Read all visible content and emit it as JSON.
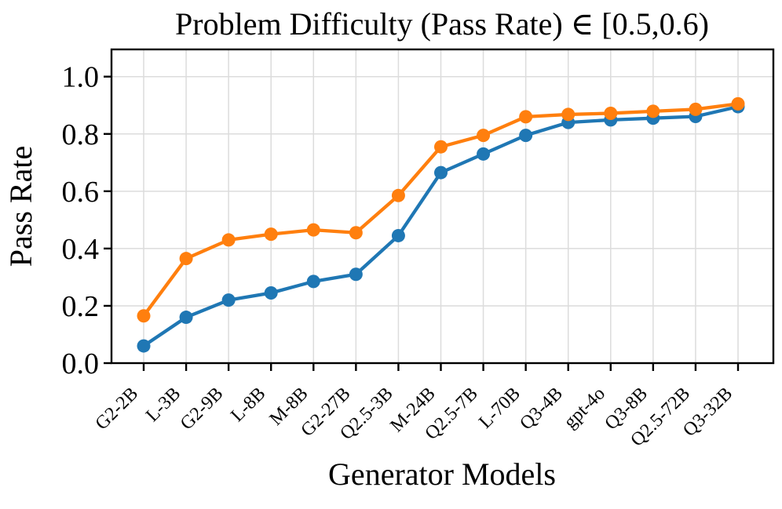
{
  "chart_data": {
    "type": "line",
    "title": "Problem Difficulty (Pass Rate) ∈ [0.5,0.6)",
    "xlabel": "Generator Models",
    "ylabel": "Pass Rate",
    "categories": [
      "G2-2B",
      "L-3B",
      "G2-9B",
      "L-8B",
      "M-8B",
      "G2-27B",
      "Q2.5-3B",
      "M-24B",
      "Q2.5-7B",
      "L-70B",
      "Q3-4B",
      "gpt-4o",
      "Q3-8B",
      "Q2.5-72B",
      "Q3-32B"
    ],
    "series": [
      {
        "name": "blue",
        "color": "#1f77b4",
        "values": [
          0.06,
          0.16,
          0.22,
          0.245,
          0.285,
          0.31,
          0.445,
          0.665,
          0.73,
          0.795,
          0.84,
          0.849,
          0.855,
          0.861,
          0.895
        ]
      },
      {
        "name": "orange",
        "color": "#ff7f0e",
        "values": [
          0.165,
          0.365,
          0.43,
          0.45,
          0.465,
          0.455,
          0.585,
          0.755,
          0.795,
          0.86,
          0.868,
          0.872,
          0.879,
          0.886,
          0.905
        ]
      }
    ],
    "ytick_values": [
      0.0,
      0.2,
      0.4,
      0.6,
      0.8,
      1.0
    ],
    "ytick_labels": [
      "0.0",
      "0.2",
      "0.4",
      "0.6",
      "0.8",
      "1.0"
    ],
    "ylim": [
      0,
      1.095
    ],
    "grid": true,
    "legend": "none",
    "grid_color": "#dcdcdc",
    "axis_color": "#000000",
    "background_color": "#ffffff"
  }
}
